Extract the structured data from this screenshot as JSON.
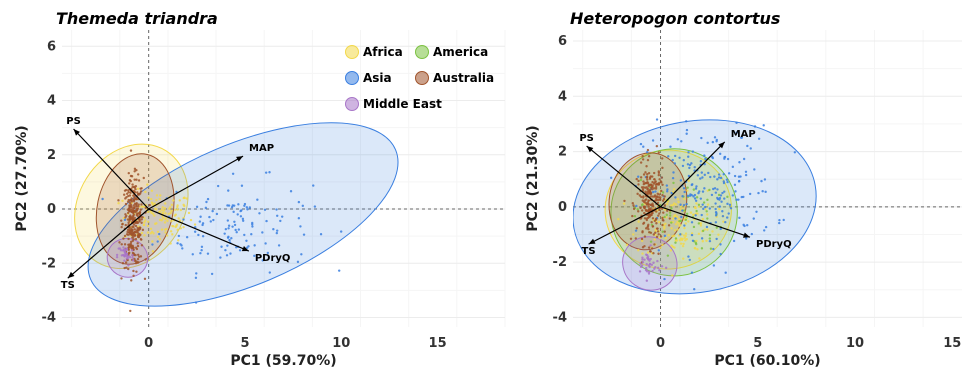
{
  "chart_data": [
    {
      "type": "scatter",
      "title": "Themeda triandra",
      "xlabel": "PC1 (59.70%)",
      "ylabel": "PC2 (27.70%)",
      "xlim": [
        -4.5,
        18.5
      ],
      "ylim": [
        -4.35,
        6.6
      ],
      "xticks": [
        0,
        5,
        10,
        15
      ],
      "yticks": [
        -4,
        -2,
        0,
        2,
        4,
        6
      ],
      "grid": true,
      "legend": {
        "placement": "top-right",
        "entries": [
          {
            "name": "Africa",
            "color": "#f2d84b"
          },
          {
            "name": "America",
            "color": "#7cc242"
          },
          {
            "name": "Asia",
            "color": "#3a7fe0"
          },
          {
            "name": "Australia",
            "color": "#a0542c"
          },
          {
            "name": "Middle East",
            "color": "#a876c8"
          }
        ]
      },
      "loadings": [
        {
          "name": "PS",
          "x": -3.9,
          "y": 2.95
        },
        {
          "name": "MAP",
          "x": 4.9,
          "y": 1.95
        },
        {
          "name": "TS",
          "x": -4.2,
          "y": -2.55
        },
        {
          "name": "PDryQ",
          "x": 5.2,
          "y": -1.55
        }
      ],
      "ellipses": [
        {
          "group": "Africa",
          "cx": -0.9,
          "cy": 0.1,
          "rx": 3.4,
          "ry": 1.95,
          "angle": -58
        },
        {
          "group": "Asia",
          "cx": 4.9,
          "cy": -0.2,
          "rx": 8.6,
          "ry": 2.6,
          "angle": -23
        },
        {
          "group": "Australia",
          "cx": -0.7,
          "cy": 0.0,
          "rx": 2.9,
          "ry": 1.4,
          "angle": -78
        },
        {
          "group": "Middle East",
          "cx": -1.1,
          "cy": -1.8,
          "rx": 1.0,
          "ry": 0.75,
          "angle": -70
        }
      ],
      "clusters": [
        {
          "group": "Africa",
          "cx": 0.5,
          "cy": -0.3,
          "sx": 1.5,
          "sy": 0.8,
          "n": 140
        },
        {
          "group": "Asia",
          "cx": 4.5,
          "cy": -0.6,
          "sx": 3.3,
          "sy": 1.4,
          "n": 130
        },
        {
          "group": "Australia",
          "cx": -0.8,
          "cy": -0.5,
          "sx": 0.45,
          "sy": 1.35,
          "n": 320
        },
        {
          "group": "Middle East",
          "cx": -1.2,
          "cy": -1.7,
          "sx": 0.35,
          "sy": 0.35,
          "n": 35
        }
      ]
    },
    {
      "type": "scatter",
      "title": "Heteropogon contortus",
      "xlabel": "PC1 (60.10%)",
      "ylabel": "PC2 (21.30%)",
      "xlim": [
        -4.5,
        15.5
      ],
      "ylim": [
        -4.35,
        6.4
      ],
      "xticks": [
        0,
        5,
        10,
        15
      ],
      "yticks": [
        -4,
        -2,
        0,
        2,
        4,
        6
      ],
      "grid": true,
      "loadings": [
        {
          "name": "PS",
          "x": -3.8,
          "y": 2.2
        },
        {
          "name": "MAP",
          "x": 3.3,
          "y": 2.35
        },
        {
          "name": "TS",
          "x": -3.7,
          "y": -1.35
        },
        {
          "name": "PDryQ",
          "x": 4.6,
          "y": -1.1
        }
      ],
      "ellipses": [
        {
          "group": "Asia",
          "cx": 1.75,
          "cy": 0.0,
          "rx": 6.3,
          "ry": 3.1,
          "angle": -10
        },
        {
          "group": "Africa",
          "cx": 0.4,
          "cy": -0.1,
          "rx": 3.25,
          "ry": 2.15,
          "angle": -5
        },
        {
          "group": "America",
          "cx": 0.7,
          "cy": -0.2,
          "rx": 3.25,
          "ry": 2.3,
          "angle": -2
        },
        {
          "group": "Australia",
          "cx": -0.65,
          "cy": 0.2,
          "rx": 2.5,
          "ry": 1.4,
          "angle": -82
        },
        {
          "group": "Middle East",
          "cx": -0.55,
          "cy": -2.05,
          "rx": 1.35,
          "ry": 1.0,
          "angle": -55
        }
      ],
      "clusters": [
        {
          "group": "Africa",
          "cx": 0.8,
          "cy": -0.6,
          "sx": 1.7,
          "sy": 1.1,
          "n": 150
        },
        {
          "group": "America",
          "cx": 0.9,
          "cy": -0.3,
          "sx": 1.9,
          "sy": 1.1,
          "n": 60
        },
        {
          "group": "Asia",
          "cx": 2.5,
          "cy": 0.6,
          "sx": 2.8,
          "sy": 1.9,
          "n": 220
        },
        {
          "group": "Australia",
          "cx": -0.5,
          "cy": 0.1,
          "sx": 0.6,
          "sy": 1.2,
          "n": 260
        },
        {
          "group": "Middle East",
          "cx": -0.6,
          "cy": -2.1,
          "sx": 0.5,
          "sy": 0.45,
          "n": 40
        }
      ]
    }
  ]
}
